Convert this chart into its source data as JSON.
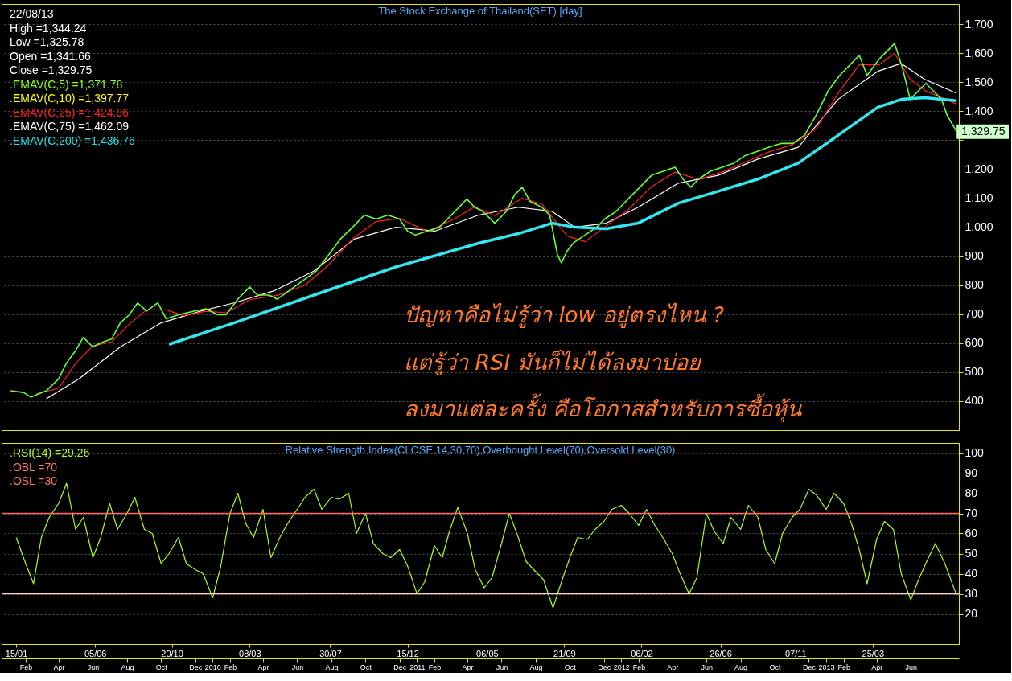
{
  "chart_data": [
    {
      "type": "line",
      "title": "The Stock Exchange of Thailand(SET) [day]",
      "series": [
        {
          "color": "#ffffff",
          "x": [
            "2009-03-10",
            "2009-05-07",
            "2009-07-20",
            "2009-10-01",
            "2009-12-11",
            "2010-02-08",
            "2010-04-20",
            "2010-07-01",
            "2010-09-11",
            "2010-11-24",
            "2011-02-03",
            "2011-04-21",
            "2011-07-01",
            "2011-08-30",
            "2011-10-10",
            "2011-12-05",
            "2012-01-31",
            "2012-04-12",
            "2012-06-22",
            "2012-09-01",
            "2012-11-12",
            "2013-01-22",
            "2013-04-03",
            "2013-05-15",
            "2013-06-26",
            "2013-08-22"
          ],
          "values": [
            408,
            477,
            587,
            670,
            711,
            739,
            780,
            849,
            959,
            1000,
            987,
            1042,
            1069,
            1055,
            1000,
            1014,
            1069,
            1152,
            1179,
            1235,
            1276,
            1441,
            1538,
            1565,
            1510,
            1462.09
          ]
        },
        {
          "color": "#ff2020",
          "x": [
            "2009-02-20",
            "2009-04-01",
            "2009-05-01",
            "2009-06-01",
            "2009-07-05",
            "2009-08-05",
            "2009-09-05",
            "2009-10-10",
            "2009-11-10",
            "2009-12-20",
            "2010-01-25",
            "2010-03-08",
            "2010-04-26",
            "2010-06-15",
            "2010-07-27",
            "2010-09-08",
            "2010-10-20",
            "2010-12-01",
            "2011-01-20",
            "2011-03-10",
            "2011-04-14",
            "2011-05-20",
            "2011-07-08",
            "2011-08-12",
            "2011-09-26",
            "2011-10-28",
            "2011-12-02",
            "2012-01-13",
            "2012-02-24",
            "2012-04-06",
            "2012-05-18",
            "2012-06-29",
            "2012-08-10",
            "2012-09-21",
            "2012-11-02",
            "2012-12-14",
            "2013-01-25",
            "2013-03-01",
            "2013-04-05",
            "2013-05-03",
            "2013-05-31",
            "2013-06-28",
            "2013-08-22"
          ],
          "values": [
            425,
            445,
            530,
            590,
            605,
            665,
            715,
            715,
            695,
            710,
            705,
            750,
            765,
            800,
            870,
            960,
            1020,
            1030,
            985,
            1030,
            1070,
            1040,
            1100,
            1080,
            970,
            950,
            1000,
            1060,
            1140,
            1190,
            1165,
            1190,
            1225,
            1260,
            1285,
            1340,
            1470,
            1560,
            1560,
            1600,
            1510,
            1470,
            1424.96
          ]
        },
        {
          "color": "#66ff33",
          "x": [
            "2009-01-05",
            "2009-01-28",
            "2009-02-10",
            "2009-03-10",
            "2009-04-01",
            "2009-04-15",
            "2009-05-01",
            "2009-05-15",
            "2009-06-01",
            "2009-06-15",
            "2009-07-05",
            "2009-07-20",
            "2009-08-05",
            "2009-08-20",
            "2009-09-05",
            "2009-09-25",
            "2009-10-10",
            "2009-11-01",
            "2009-11-30",
            "2009-12-20",
            "2010-01-10",
            "2010-01-25",
            "2010-02-15",
            "2010-03-08",
            "2010-03-22",
            "2010-04-12",
            "2010-04-26",
            "2010-05-17",
            "2010-06-15",
            "2010-07-05",
            "2010-07-27",
            "2010-08-17",
            "2010-09-08",
            "2010-09-29",
            "2010-10-20",
            "2010-11-10",
            "2010-12-01",
            "2010-12-15",
            "2010-12-29",
            "2011-01-20",
            "2011-02-10",
            "2011-03-10",
            "2011-03-31",
            "2011-04-14",
            "2011-04-28",
            "2011-05-20",
            "2011-06-10",
            "2011-06-24",
            "2011-07-08",
            "2011-07-22",
            "2011-08-12",
            "2011-08-26",
            "2011-09-09",
            "2011-09-16",
            "2011-09-26",
            "2011-10-07",
            "2011-10-28",
            "2011-11-18",
            "2011-12-02",
            "2011-12-23",
            "2012-01-13",
            "2012-02-03",
            "2012-02-24",
            "2012-03-16",
            "2012-04-06",
            "2012-04-20",
            "2012-05-04",
            "2012-05-18",
            "2012-06-08",
            "2012-06-29",
            "2012-07-20",
            "2012-08-10",
            "2012-08-31",
            "2012-09-21",
            "2012-10-12",
            "2012-11-02",
            "2012-11-23",
            "2012-12-14",
            "2013-01-04",
            "2013-01-25",
            "2013-02-15",
            "2013-03-01",
            "2013-03-15",
            "2013-04-05",
            "2013-04-26",
            "2013-05-03",
            "2013-05-17",
            "2013-05-31",
            "2013-06-14",
            "2013-06-28",
            "2013-07-12",
            "2013-07-26",
            "2013-08-05",
            "2013-08-22"
          ],
          "values": [
            436,
            430,
            414,
            436,
            477,
            532,
            574,
            620,
            587,
            601,
            615,
            670,
            698,
            739,
            711,
            739,
            684,
            698,
            711,
            719,
            698,
            698,
            752,
            794,
            766,
            766,
            752,
            780,
            821,
            849,
            904,
            959,
            1000,
            1042,
            1028,
            1042,
            1028,
            987,
            973,
            987,
            1000,
            1055,
            1097,
            1069,
            1055,
            1014,
            1055,
            1111,
            1138,
            1089,
            1069,
            1042,
            904,
            877,
            918,
            945,
            973,
            1000,
            1028,
            1055,
            1097,
            1138,
            1179,
            1193,
            1207,
            1166,
            1138,
            1166,
            1193,
            1207,
            1221,
            1248,
            1262,
            1276,
            1289,
            1289,
            1317,
            1386,
            1469,
            1524,
            1565,
            1593,
            1524,
            1579,
            1620,
            1634,
            1551,
            1441,
            1469,
            1496,
            1469,
            1441,
            1386,
            1329.75
          ]
        },
        {
          "color": "#33e6f0",
          "x": [
            "2009-10-15",
            "2010-02-08",
            "2010-07-01",
            "2010-11-24",
            "2011-04-21",
            "2011-07-01",
            "2011-08-30",
            "2011-10-10",
            "2011-12-05",
            "2012-01-31",
            "2012-04-12",
            "2012-06-22",
            "2012-09-01",
            "2012-11-12",
            "2013-01-22",
            "2013-04-03",
            "2013-05-15",
            "2013-06-26",
            "2013-08-22"
          ],
          "values": [
            596,
            670,
            766,
            863,
            945,
            978,
            1014,
            1000,
            995,
            1014,
            1083,
            1124,
            1166,
            1221,
            1317,
            1414,
            1441,
            1447,
            1436.76
          ]
        }
      ],
      "xlim": [
        "2008-12-20",
        "2013-08-26"
      ],
      "ylim": [
        300,
        1770
      ],
      "yticks": [
        400,
        500,
        600,
        700,
        800,
        900,
        {
          "value": 1000,
          "label": "1,000"
        },
        {
          "value": 1100,
          "label": "1,100"
        },
        {
          "value": 1200,
          "label": "1,200"
        },
        {
          "value": 1300,
          "label": null
        },
        {
          "value": 1400,
          "label": "1,400"
        },
        {
          "value": 1500,
          "label": "1,500"
        },
        {
          "value": 1600,
          "label": "1,600"
        },
        {
          "value": 1700,
          "label": "1,700"
        }
      ],
      "tick_labels": "y",
      "grid": "y",
      "annotations": [
        "22/08/13",
        "High =1,344.24",
        "Low =1,325.78",
        "Open =1,341.66",
        "Close =1,329.75",
        ".EMAV(C,5)  =1,371.78",
        ".EMAV(C,10)  =1,397.77",
        ".EMAV(C,25)  =1,424.96",
        ".EMAV(C,75)  =1,462.09",
        ".EMAV(C,200)  =1,436.76",
        "ปัญหาคือไม่รู้ว่า low อยู่ตรงไหน ?",
        "แต่รู้ว่า RSI มันก็ไม่ได้ลงมาบ่อย",
        "ลงมาแต่ละครั้ง คือโอกาสสำหรับการซื้อหุ้น",
        {
          "text": "1,329.75",
          "x": "2013-08-22",
          "y": 1329.75
        }
      ]
    },
    {
      "type": "line",
      "title": "Relative Strength Index(CLOSE,14,30,70),Overbought Level(70),Oversold Level(30)",
      "series": [
        {
          "color": "#aaff22",
          "x": [
            "2009-01-15",
            "2009-02-01",
            "2009-02-15",
            "2009-03-01",
            "2009-03-15",
            "2009-04-01",
            "2009-04-15",
            "2009-05-01",
            "2009-05-15",
            "2009-06-01",
            "2009-06-15",
            "2009-07-01",
            "2009-07-15",
            "2009-08-01",
            "2009-08-15",
            "2009-09-01",
            "2009-09-15",
            "2009-10-01",
            "2009-10-15",
            "2009-11-01",
            "2009-11-15",
            "2009-12-01",
            "2009-12-15",
            "2010-01-01",
            "2010-01-15",
            "2010-02-01",
            "2010-02-15",
            "2010-03-01",
            "2010-03-15",
            "2010-04-01",
            "2010-04-15",
            "2010-05-01",
            "2010-05-15",
            "2010-06-01",
            "2010-06-15",
            "2010-07-01",
            "2010-07-15",
            "2010-08-01",
            "2010-08-15",
            "2010-09-01",
            "2010-09-15",
            "2010-10-01",
            "2010-10-15",
            "2010-11-01",
            "2010-11-15",
            "2010-12-01",
            "2010-12-15",
            "2011-01-01",
            "2011-01-15",
            "2011-02-01",
            "2011-02-15",
            "2011-03-01",
            "2011-03-15",
            "2011-04-01",
            "2011-04-15",
            "2011-05-01",
            "2011-05-15",
            "2011-06-01",
            "2011-06-15",
            "2011-07-01",
            "2011-07-15",
            "2011-08-01",
            "2011-08-15",
            "2011-09-01",
            "2011-09-15",
            "2011-10-01",
            "2011-10-15",
            "2011-11-01",
            "2011-11-15",
            "2011-12-01",
            "2011-12-15",
            "2012-01-01",
            "2012-01-15",
            "2012-02-01",
            "2012-02-15",
            "2012-03-01",
            "2012-03-15",
            "2012-04-01",
            "2012-04-15",
            "2012-05-01",
            "2012-05-15",
            "2012-06-01",
            "2012-06-15",
            "2012-07-01",
            "2012-07-15",
            "2012-08-01",
            "2012-08-15",
            "2012-09-01",
            "2012-09-15",
            "2012-10-01",
            "2012-10-15",
            "2012-11-01",
            "2012-11-15",
            "2012-12-01",
            "2012-12-15",
            "2013-01-01",
            "2013-01-15",
            "2013-02-01",
            "2013-02-15",
            "2013-03-01",
            "2013-03-15",
            "2013-04-01",
            "2013-04-15",
            "2013-05-01",
            "2013-05-15",
            "2013-06-01",
            "2013-06-15",
            "2013-07-01",
            "2013-07-15",
            "2013-08-01",
            "2013-08-22"
          ],
          "values": [
            58,
            45,
            35,
            58,
            68,
            75,
            85,
            62,
            68,
            48,
            58,
            75,
            62,
            70,
            78,
            62,
            60,
            45,
            50,
            58,
            45,
            42,
            40,
            28,
            43,
            70,
            80,
            65,
            58,
            72,
            48,
            58,
            65,
            72,
            78,
            82,
            72,
            78,
            77,
            80,
            60,
            70,
            55,
            50,
            48,
            52,
            44,
            30,
            36,
            54,
            48,
            62,
            73,
            60,
            42,
            33,
            38,
            55,
            70,
            58,
            46,
            41,
            37,
            23,
            35,
            48,
            58,
            57,
            62,
            66,
            72,
            74,
            70,
            64,
            72,
            64,
            58,
            50,
            40,
            30,
            38,
            70,
            61,
            55,
            68,
            62,
            74,
            68,
            52,
            45,
            60,
            68,
            72,
            82,
            79,
            72,
            80,
            75,
            65,
            52,
            35,
            57,
            66,
            62,
            40,
            27,
            37,
            47,
            55,
            45,
            29.26
          ]
        }
      ],
      "xlim": [
        "2008-12-20",
        "2013-08-26"
      ],
      "ylim": [
        5,
        105
      ],
      "yticks": [
        20,
        30,
        40,
        50,
        60,
        70,
        80,
        90,
        100
      ],
      "grid": "y",
      "x2lim": [
        "2008-12-20",
        "2013-08-26"
      ],
      "xticks": [
        {
          "value": "2009-01-15",
          "label": "15/01"
        },
        {
          "value": "2009-06-05",
          "label": "05/06"
        },
        {
          "value": "2009-10-20",
          "label": "20/10"
        },
        {
          "value": "2010-03-08",
          "label": "08/03"
        },
        {
          "value": "2010-07-30",
          "label": "30/07"
        },
        {
          "value": "2010-12-15",
          "label": "15/12"
        },
        {
          "value": "2011-05-06",
          "label": "06/05"
        },
        {
          "value": "2011-09-21",
          "label": "21/09"
        },
        {
          "value": "2012-02-06",
          "label": "06/02"
        },
        {
          "value": "2012-06-26",
          "label": "26/06"
        },
        {
          "value": "2012-11-07",
          "label": "07/11"
        },
        {
          "value": "2013-03-25",
          "label": "25/03"
        }
      ],
      "x2ticks": [
        {
          "value": "2009-02-01",
          "label": "Feb"
        },
        {
          "value": "2009-04-01",
          "label": "Apr"
        },
        {
          "value": "2009-06-01",
          "label": "Jun"
        },
        {
          "value": "2009-08-01",
          "label": "Aug"
        },
        {
          "value": "2009-10-01",
          "label": "Oct"
        },
        {
          "value": "2009-12-01",
          "label": "Dec"
        },
        {
          "value": "2010-01-01",
          "label": "2010"
        },
        {
          "value": "2010-02-01",
          "label": "Feb"
        },
        {
          "value": "2010-04-01",
          "label": "Apr"
        },
        {
          "value": "2010-06-01",
          "label": "Jun"
        },
        {
          "value": "2010-08-01",
          "label": "Aug"
        },
        {
          "value": "2010-10-01",
          "label": "Oct"
        },
        {
          "value": "2010-12-01",
          "label": "Dec"
        },
        {
          "value": "2011-01-01",
          "label": "2011"
        },
        {
          "value": "2011-02-01",
          "label": "Feb"
        },
        {
          "value": "2011-04-01",
          "label": "Apr"
        },
        {
          "value": "2011-06-01",
          "label": "Jun"
        },
        {
          "value": "2011-08-01",
          "label": "Aug"
        },
        {
          "value": "2011-10-01",
          "label": "Oct"
        },
        {
          "value": "2011-12-01",
          "label": "Dec"
        },
        {
          "value": "2012-01-01",
          "label": "2012"
        },
        {
          "value": "2012-02-01",
          "label": "Feb"
        },
        {
          "value": "2012-04-01",
          "label": "Apr"
        },
        {
          "value": "2012-06-01",
          "label": "Jun"
        },
        {
          "value": "2012-08-01",
          "label": "Aug"
        },
        {
          "value": "2012-10-01",
          "label": "Oct"
        },
        {
          "value": "2012-12-01",
          "label": "Dec"
        },
        {
          "value": "2013-01-01",
          "label": "2013"
        },
        {
          "value": "2013-02-01",
          "label": "Feb"
        },
        {
          "value": "2013-04-01",
          "label": "Apr"
        },
        {
          "value": "2013-06-01",
          "label": "Jun"
        }
      ],
      "ref_lines": [
        {
          "axis": "y",
          "value": 70,
          "color": "#ff6666"
        },
        {
          "axis": "y",
          "value": 30,
          "color": "#ffcccc"
        }
      ],
      "annotations": [
        ".RSI(14)  =29.26",
        ".OBL  =70",
        ".OSL  =30"
      ]
    }
  ]
}
